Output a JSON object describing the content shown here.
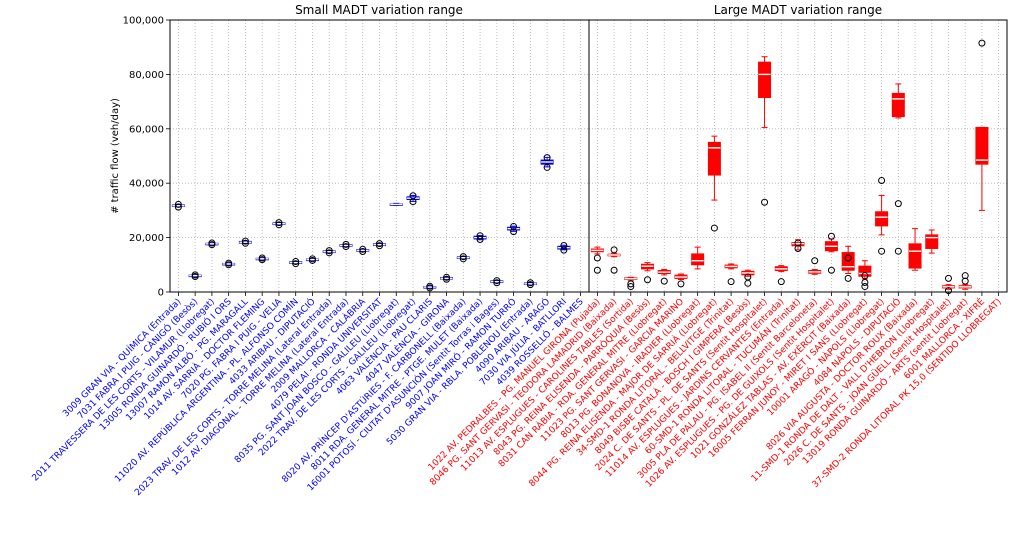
{
  "chart_data": {
    "type": "box",
    "ylabel": "# traffic flow (veh/day)",
    "ylim": [
      0,
      100000
    ],
    "yticks": [
      "0",
      "20,000",
      "40,000",
      "60,000",
      "80,000",
      "100,000"
    ],
    "grid": true,
    "panels": [
      {
        "title": "Small MADT variation range",
        "color": "#0000ff",
        "boxes": [
          {
            "label": "3009 GRAN VIA - QUÍMICA (Entrada)",
            "q1": 31500,
            "median": 31700,
            "q3": 32000,
            "whislo": 31300,
            "whishi": 32300,
            "fliers": [
              31200,
              32200
            ]
          },
          {
            "label": "7031 FABRA I PUIG - CÀNIGÓ (Besòs)",
            "q1": 5800,
            "median": 6000,
            "q3": 6200,
            "whislo": 5600,
            "whishi": 6400,
            "fliers": [
              5700,
              6300
            ]
          },
          {
            "label": "2011 TRAVESSERA DE LES CORTS - VILAMUR (Llobregat)",
            "q1": 17500,
            "median": 17700,
            "q3": 17900,
            "whislo": 17300,
            "whishi": 18100,
            "fliers": [
              17400,
              18000
            ]
          },
          {
            "label": "13005 RONDA GUINARDÓ - RUBIÓ I ORS",
            "q1": 10100,
            "median": 10300,
            "q3": 10500,
            "whislo": 9900,
            "whishi": 10700,
            "fliers": [
              10000,
              10600
            ]
          },
          {
            "label": "13007 RAMON ALBÓ - PG. MARAGALL",
            "q1": 18000,
            "median": 18300,
            "q3": 18600,
            "whislo": 17800,
            "whishi": 18800,
            "fliers": [
              17900,
              18700
            ]
          },
          {
            "label": "1014 AV. SARRIÀ - DOCTOR FLEMING",
            "q1": 12000,
            "median": 12200,
            "q3": 12400,
            "whislo": 11800,
            "whishi": 12600,
            "fliers": [
              11900,
              12500
            ]
          },
          {
            "label": "7020 PG. FABRA I PUIG - VELIA",
            "q1": 24800,
            "median": 25100,
            "q3": 25400,
            "whislo": 24600,
            "whishi": 25600,
            "fliers": [
              24700,
              25500
            ]
          },
          {
            "label": "11020 AV. REPÚBLICA ARGENTINA - PL. ALFONSO COMÍN",
            "q1": 10500,
            "median": 10800,
            "q3": 11100,
            "whislo": 10300,
            "whishi": 11300,
            "fliers": [
              10400,
              11200
            ]
          },
          {
            "label": "4033 ARIBAU - DIPUTACIÓ",
            "q1": 11700,
            "median": 11900,
            "q3": 12100,
            "whislo": 11500,
            "whishi": 12300,
            "fliers": [
              11600,
              12200
            ]
          },
          {
            "label": "2023 TRAV. DE LES CORTS - TORRE MELINA (Lateral Entrada)",
            "q1": 14500,
            "median": 14800,
            "q3": 15100,
            "whislo": 14300,
            "whishi": 15300,
            "fliers": [
              14400,
              15200
            ]
          },
          {
            "label": "1012 AV. DIAGONAL - TORRE MELINA (Lateral Entrada)",
            "q1": 16800,
            "median": 17100,
            "q3": 17400,
            "whislo": 16600,
            "whishi": 17600,
            "fliers": [
              16700,
              17500
            ]
          },
          {
            "label": "2009 MALLORCA - CALÀBRIA",
            "q1": 15000,
            "median": 15300,
            "q3": 15600,
            "whislo": 14800,
            "whishi": 15800,
            "fliers": [
              14900,
              15700
            ]
          },
          {
            "label": "4079 PELAI - RONDA UNIVERSITAT",
            "q1": 17100,
            "median": 17400,
            "q3": 17700,
            "whislo": 16900,
            "whishi": 17900,
            "fliers": [
              17000,
              17800
            ]
          },
          {
            "label": "8035 PG. SANT JOAN BOSCO - GALILEU (Llobregat)",
            "q1": 32000,
            "median": 32200,
            "q3": 32400,
            "whislo": 31800,
            "whishi": 32600,
            "fliers": []
          },
          {
            "label": "2022 TRAV. DE LES CORTS - GALILEU (Llobregat)",
            "q1": 34000,
            "median": 34500,
            "q3": 35000,
            "whislo": 33300,
            "whishi": 35500,
            "fliers": [
              33200,
              35400
            ]
          },
          {
            "label": "4063 VALÈNCIA - PAU CLARIS",
            "q1": 1600,
            "median": 1800,
            "q3": 2000,
            "whislo": 1400,
            "whishi": 2200,
            "fliers": [
              1500,
              2100
            ]
          },
          {
            "label": "4047 VALÈNCIA - GIRONA",
            "q1": 4800,
            "median": 5000,
            "q3": 5300,
            "whislo": 4600,
            "whishi": 5500,
            "fliers": [
              4700,
              5400
            ]
          },
          {
            "label": "8020 AV. PRÍNCEP D'ASTÚRIES - F. CARBONELL (Baixada)",
            "q1": 12300,
            "median": 12600,
            "q3": 12900,
            "whislo": 12100,
            "whishi": 13100,
            "fliers": [
              12200,
              13000
            ]
          },
          {
            "label": "8011 RDA. GENERAL MITRE - PTGE. MULET (Baixada)",
            "q1": 19500,
            "median": 20000,
            "q3": 20500,
            "whislo": 19200,
            "whishi": 20800,
            "fliers": [
              19300,
              20700
            ]
          },
          {
            "label": "16001 POTOSÍ - CIUTAT D'ASUNCIÓN (Sentit Torras i Bages)",
            "q1": 3500,
            "median": 3800,
            "q3": 4100,
            "whislo": 3300,
            "whishi": 4300,
            "fliers": [
              3400,
              4200
            ]
          },
          {
            "label": "9007 JOAN MIRÓ - RAMON TURRÓ",
            "q1": 22800,
            "median": 23300,
            "q3": 23800,
            "whislo": 22300,
            "whishi": 24200,
            "fliers": [
              22200,
              24100
            ]
          },
          {
            "label": "5030 GRAN VIA - RBLA. POBLENOU (Entrada)",
            "q1": 2800,
            "median": 3000,
            "q3": 3300,
            "whislo": 2600,
            "whishi": 3500,
            "fliers": [
              2700,
              3400
            ]
          },
          {
            "label": "4090 ARIBAU - ARAGÓ",
            "q1": 47000,
            "median": 47800,
            "q3": 48500,
            "whislo": 46000,
            "whishi": 49500,
            "fliers": [
              45800,
              49400
            ]
          },
          {
            "label": "7030 VIA JÚLIA - BATLLORI",
            "q1": 15800,
            "median": 16300,
            "q3": 16800,
            "whislo": 15500,
            "whishi": 17200,
            "fliers": [
              15400,
              17100
            ]
          },
          {
            "label": "4039 ROSSELLÓ - BALMES",
            "q1": 0,
            "median": 0,
            "q3": 0,
            "whislo": 0,
            "whishi": 0,
            "fliers": []
          }
        ]
      },
      {
        "title": "Large MADT variation range",
        "color": "#ff0000",
        "boxes": [
          {
            "label": "1022 AV. PEDRALBES - PG. MANUEL GIRONA (Pujada)",
            "q1": 14800,
            "median": 15300,
            "q3": 15800,
            "whislo": 14000,
            "whishi": 16500,
            "fliers": [
              12500,
              8000
            ]
          },
          {
            "label": "8046 PG. SANT GERVASI - TEODORA LAMADRID (Baixada)",
            "q1": 13300,
            "median": 13600,
            "q3": 13900,
            "whislo": 13000,
            "whishi": 14200,
            "fliers": [
              15500,
              8000
            ]
          },
          {
            "label": "11013 AV. ESPLUGUES - CAROLINES TABLES (Sortida)",
            "q1": 4600,
            "median": 4900,
            "q3": 5200,
            "whislo": 4300,
            "whishi": 5400,
            "fliers": [
              3000,
              2000
            ]
          },
          {
            "label": "8043 PG. REINA ELISENDA - PARRÒQUIA (Besòs)",
            "q1": 8500,
            "median": 9500,
            "q3": 10200,
            "whislo": 7800,
            "whishi": 10800,
            "fliers": [
              4500
            ]
          },
          {
            "label": "8031 CAN RÀBIA - RDA. GENERAL MITRE (Llobregat)",
            "q1": 6800,
            "median": 7300,
            "q3": 7900,
            "whislo": 6300,
            "whishi": 8300,
            "fliers": [
              4000
            ]
          },
          {
            "label": "11023 PG. SANT GERVASI - GARCIA MARINO",
            "q1": 5000,
            "median": 5500,
            "q3": 6200,
            "whislo": 4600,
            "whishi": 6600,
            "fliers": [
              3000
            ]
          },
          {
            "label": "8013 PG. BONANOVA - IRADIER (Llobregat)",
            "q1": 10000,
            "median": 11500,
            "q3": 14000,
            "whislo": 8500,
            "whishi": 16500,
            "fliers": []
          },
          {
            "label": "8044 PG. REINA ELISENDA - MAJOR DE SARRIÀ (Llobregat)",
            "q1": 43000,
            "median": 53000,
            "q3": 55000,
            "whislo": 33800,
            "whishi": 57300,
            "fliers": [
              23500
            ]
          },
          {
            "label": "34-SMD-1 RONDA LITORAL - BELLVITGE (Trinitat)",
            "q1": 8900,
            "median": 9400,
            "q3": 9900,
            "whislo": 8500,
            "whishi": 10300,
            "fliers": [
              3800
            ]
          },
          {
            "label": "8049 BISBE CATALÀ - BOSCH I GIMPERA (Besòs)",
            "q1": 6300,
            "median": 7000,
            "q3": 7600,
            "whislo": 5800,
            "whishi": 8000,
            "fliers": [
              5500,
              3200
            ]
          },
          {
            "label": "2024 C. DE SANTS - PL. DE SANTS (Sentit Hospitalet)",
            "q1": 71500,
            "median": 80000,
            "q3": 84500,
            "whislo": 60500,
            "whishi": 86500,
            "fliers": [
              33000
            ]
          },
          {
            "label": "11014 AV. ESPLUGUES - JARDINS CERVANTES (Entrada)",
            "q1": 7900,
            "median": 8500,
            "q3": 9300,
            "whislo": 7500,
            "whishi": 9700,
            "fliers": [
              3800
            ]
          },
          {
            "label": "60-SMD-1 RONDA LITORAL - TUCUMÁN (Trinitat)",
            "q1": 17000,
            "median": 17800,
            "q3": 18200,
            "whislo": 15500,
            "whishi": 19200,
            "fliers": [
              16000,
              18000
            ]
          },
          {
            "label": "3005 PLA DE PALAU - PG. ISABEL II (Sentit Barceloneta)",
            "q1": 6900,
            "median": 7400,
            "q3": 7900,
            "whislo": 6500,
            "whishi": 8300,
            "fliers": [
              11500
            ]
          },
          {
            "label": "1026 AV. ESPLUGUES - PG. DE GUIXOLS (Sentit Hospitalet)",
            "q1": 15200,
            "median": 16800,
            "q3": 18500,
            "whislo": 14800,
            "whishi": 19500,
            "fliers": [
              20500,
              8000
            ]
          },
          {
            "label": "1021 GONZÁLEZ TABLAS - AV. EXÈRCIT (Baixada)",
            "q1": 8000,
            "median": 9300,
            "q3": 14500,
            "whislo": 6800,
            "whishi": 16800,
            "fliers": [
              12500,
              5000
            ]
          },
          {
            "label": "16005 FERRAN JUNOY - MIRET I SANS (Llobregat)",
            "q1": 5800,
            "median": 6800,
            "q3": 9500,
            "whislo": 4800,
            "whishi": 11500,
            "fliers": [
              6000,
              3500,
              2000
            ]
          },
          {
            "label": "10001 ARAGÓ - NÀPOLS (Llobregat)",
            "q1": 24300,
            "median": 27500,
            "q3": 29500,
            "whislo": 21000,
            "whishi": 35500,
            "fliers": [
              41000,
              15000
            ]
          },
          {
            "label": "4084 NÀPOLS - DIPUTACIÓ",
            "q1": 64500,
            "median": 71000,
            "q3": 73000,
            "whislo": 64000,
            "whishi": 76500,
            "fliers": [
              32500,
              15000
            ]
          },
          {
            "label": "8026 VIA AUGUSTA - DOCTOR ROUX (Baixada)",
            "q1": 8800,
            "median": 15000,
            "q3": 17700,
            "whislo": 8000,
            "whishi": 23300,
            "fliers": []
          },
          {
            "label": "11-SMD-1 RONDA DE DALT - VALL D'HEBRON (Llobregat)",
            "q1": 16000,
            "median": 20000,
            "q3": 21000,
            "whislo": 14300,
            "whishi": 22800,
            "fliers": []
          },
          {
            "label": "2026 C. DE SANTS - JOAN GÜELL (Sentit Hospitalet)",
            "q1": 1500,
            "median": 1900,
            "q3": 2300,
            "whislo": 1000,
            "whishi": 2700,
            "fliers": [
              5000,
              500
            ]
          },
          {
            "label": "13019 RONDA GUINARDÓ - ARTS (sentit Llobregat)",
            "q1": 1500,
            "median": 1900,
            "q3": 2300,
            "whislo": 1000,
            "whishi": 2700,
            "fliers": [
              6000,
              4000
            ]
          },
          {
            "label": "6001 MALLORCA - XIFRÉ",
            "q1": 47000,
            "median": 48500,
            "q3": 60500,
            "whislo": 30000,
            "whishi": 60500,
            "fliers": [
              91500
            ]
          },
          {
            "label": "37-SMD-2 RONDA LITORAL PK 15,0 (SENTIDO LLOBREGAT)",
            "q1": 0,
            "median": 0,
            "q3": 0,
            "whislo": 0,
            "whishi": 0,
            "fliers": []
          }
        ]
      }
    ]
  }
}
